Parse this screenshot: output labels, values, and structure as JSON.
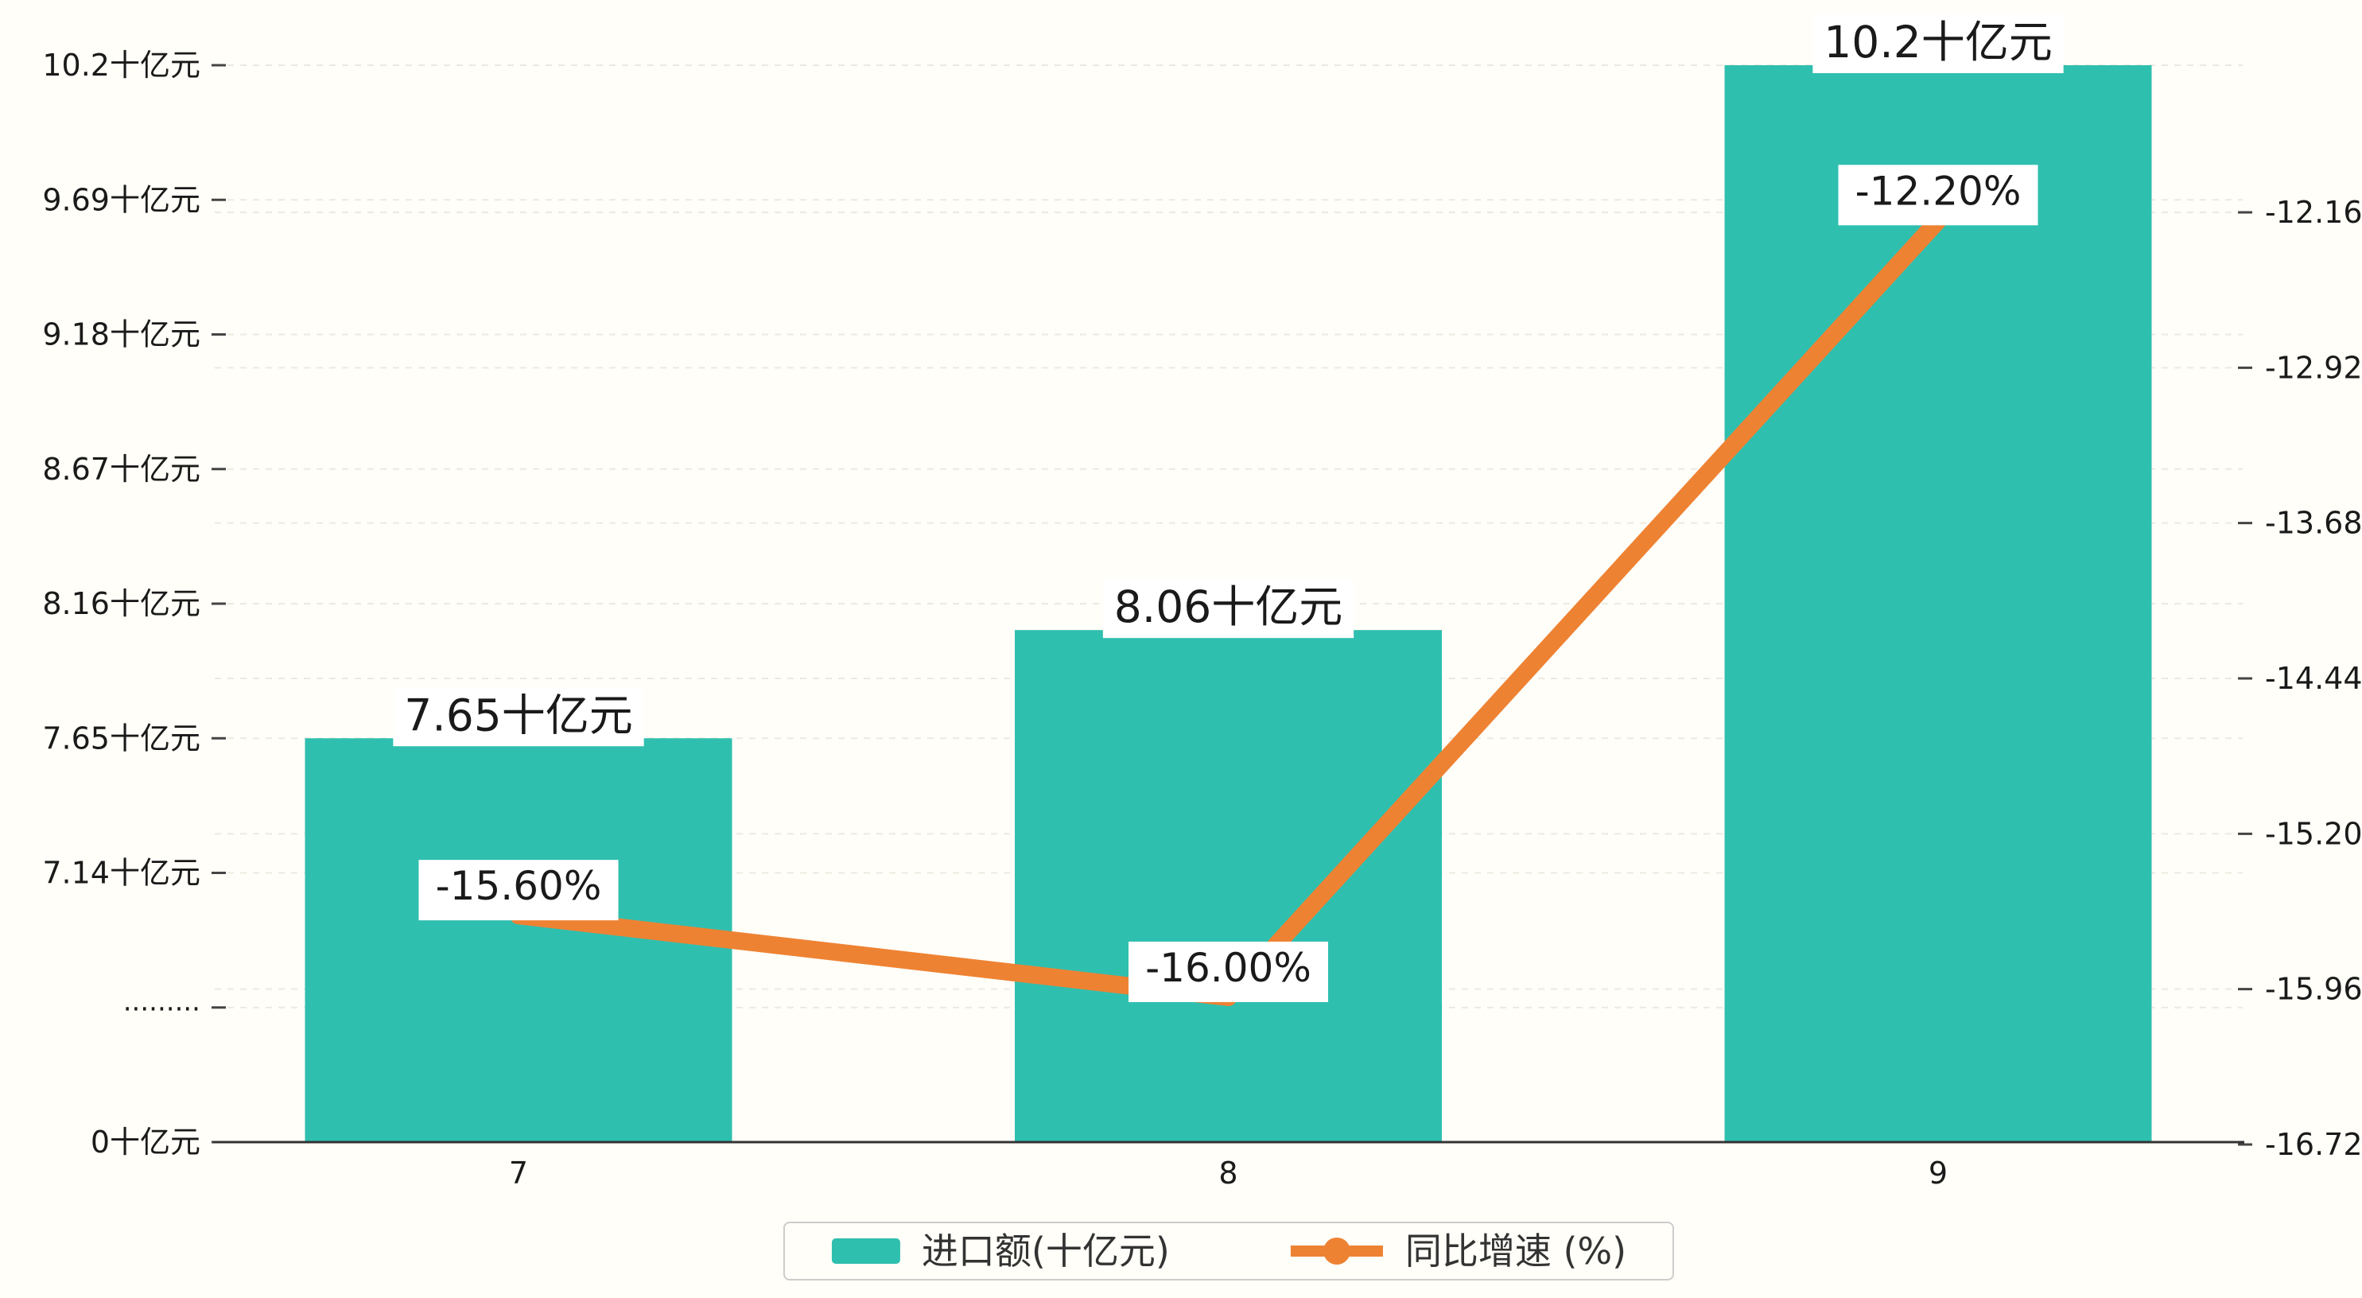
{
  "chart_data": {
    "type": "bar",
    "combo": "bar+line",
    "categories": [
      "7",
      "8",
      "9"
    ],
    "series": [
      {
        "name": "进口额(十亿元)",
        "type": "bar",
        "yaxis": "left",
        "values": [
          7.65,
          8.06,
          10.2
        ],
        "value_labels": [
          "7.65十亿元",
          "8.06十亿元",
          "10.2十亿元"
        ],
        "color": "#2FBFAF"
      },
      {
        "name": "同比增速 (%)",
        "type": "line",
        "yaxis": "right",
        "values": [
          -15.6,
          -16.0,
          -12.2
        ],
        "value_labels": [
          "-15.60%",
          "-16.00%",
          "-12.20%"
        ],
        "color": "#EE8233"
      }
    ],
    "left_axis": {
      "unit": "十亿元",
      "has_break": true,
      "tick_labels": [
        "10.2十亿元",
        "9.69十亿元",
        "9.18十亿元",
        "8.67十亿元",
        "8.16十亿元",
        "7.65十亿元",
        "7.14十亿元",
        "·········",
        "0十亿元"
      ],
      "tick_values": [
        10.2,
        9.69,
        9.18,
        8.67,
        8.16,
        7.65,
        7.14,
        null,
        0
      ]
    },
    "right_axis": {
      "tick_labels": [
        "-12.16",
        "-12.92",
        "-13.68",
        "-14.44",
        "-15.20",
        "-15.96",
        "-16.72"
      ],
      "max": -12.16,
      "min": -16.72
    },
    "grid": true,
    "legend_position": "bottom"
  },
  "legend": {
    "items": [
      {
        "label": "进口额(十亿元)",
        "marker": "bar-swatch",
        "color": "#2FBFAF"
      },
      {
        "label": "同比增速 (%)",
        "marker": "line-dot",
        "color": "#EE8233"
      }
    ]
  },
  "colors": {
    "background": "#FFFEF8",
    "bar": "#2FBFAF",
    "line": "#EE8233",
    "grid": "#ECEAE0",
    "axis": "#333333",
    "tick": "#444444",
    "text": "#1A1A1A",
    "label_bg": "#FFFFFF"
  }
}
